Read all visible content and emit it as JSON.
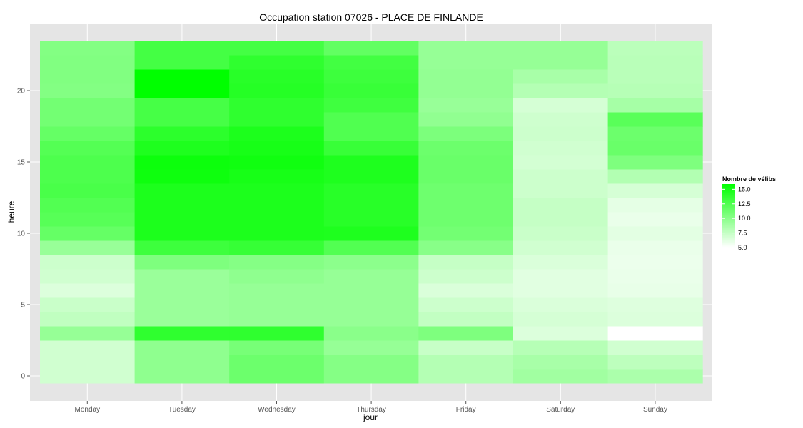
{
  "chart_data": {
    "type": "heatmap",
    "title": "Occupation station 07026 - PLACE DE FINLANDE",
    "xlabel": "jour",
    "ylabel": "heure",
    "x_categories": [
      "Monday",
      "Tuesday",
      "Wednesday",
      "Thursday",
      "Friday",
      "Saturday",
      "Sunday"
    ],
    "y_range": [
      0,
      23
    ],
    "y_ticks": [
      0,
      5,
      10,
      15,
      20
    ],
    "x_ticks_visible": [
      "Monday",
      "Tuesday",
      "Wednesday",
      "Thursday",
      "Friday",
      "Saturday",
      "Sunday"
    ],
    "legend": {
      "title": "Nombre de vélibs",
      "labels": [
        "15.0",
        "12.5",
        "10.0",
        "7.5",
        "5.0"
      ],
      "min": 5.0,
      "max": 15.9,
      "low_color": "#ffffff",
      "high_color": "#00ff00",
      "position": "right"
    },
    "grid": true,
    "panel_background": "#e5e5e5",
    "values": [
      [
        7.0,
        9.8,
        11.3,
        10.2,
        8.2,
        9.0,
        8.6
      ],
      [
        7.0,
        9.8,
        11.3,
        10.2,
        8.2,
        8.7,
        7.8
      ],
      [
        7.0,
        9.8,
        10.8,
        9.5,
        7.4,
        8.1,
        7.0
      ],
      [
        9.5,
        13.9,
        13.9,
        10.0,
        10.5,
        6.5,
        5.0
      ],
      [
        7.7,
        9.3,
        9.5,
        9.5,
        7.6,
        6.8,
        6.5
      ],
      [
        7.3,
        9.3,
        9.5,
        9.5,
        7.2,
        6.6,
        6.4
      ],
      [
        6.5,
        9.3,
        9.5,
        9.5,
        6.6,
        6.3,
        6.0
      ],
      [
        7.0,
        9.3,
        9.8,
        9.5,
        7.2,
        6.3,
        5.9
      ],
      [
        7.2,
        10.5,
        10.2,
        9.9,
        7.5,
        6.6,
        5.8
      ],
      [
        9.4,
        13.3,
        13.6,
        12.4,
        10.1,
        7.0,
        5.9
      ],
      [
        11.6,
        14.7,
        14.7,
        14.6,
        11.0,
        7.3,
        6.2
      ],
      [
        12.2,
        14.7,
        14.7,
        14.2,
        11.2,
        7.5,
        5.9
      ],
      [
        12.4,
        14.7,
        14.7,
        14.2,
        11.2,
        7.5,
        6.1
      ],
      [
        12.8,
        14.7,
        14.7,
        14.2,
        11.2,
        7.2,
        6.8
      ],
      [
        12.6,
        15.3,
        14.9,
        14.6,
        11.4,
        7.2,
        8.3
      ],
      [
        12.6,
        15.4,
        15.2,
        14.6,
        11.4,
        6.9,
        10.5
      ],
      [
        12.3,
        14.6,
        14.9,
        13.5,
        11.3,
        7.0,
        11.4
      ],
      [
        11.6,
        14.0,
        14.7,
        12.5,
        10.6,
        7.2,
        11.3
      ],
      [
        11.0,
        12.9,
        13.9,
        12.5,
        9.7,
        7.1,
        12.1
      ],
      [
        11.0,
        12.9,
        13.9,
        13.2,
        9.4,
        6.8,
        8.8
      ],
      [
        10.3,
        15.9,
        14.3,
        13.5,
        9.6,
        8.2,
        8.1
      ],
      [
        10.4,
        15.9,
        14.2,
        13.3,
        9.6,
        8.7,
        8.0
      ],
      [
        10.4,
        13.0,
        13.9,
        13.1,
        9.5,
        9.5,
        8.0
      ],
      [
        10.3,
        13.0,
        13.0,
        11.7,
        9.5,
        9.5,
        7.9
      ]
    ]
  }
}
